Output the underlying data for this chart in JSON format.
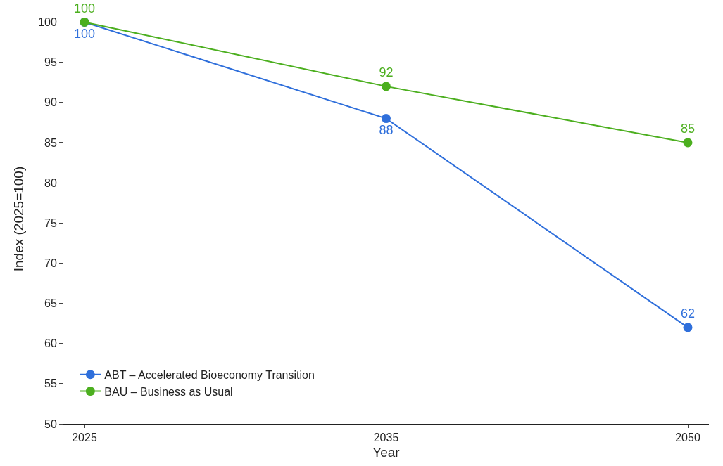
{
  "chart_data": {
    "type": "line",
    "xlabel": "Year",
    "ylabel": "Index (2025=100)",
    "categories": [
      "2025",
      "2035",
      "2050"
    ],
    "series": [
      {
        "name": "ABT – Accelerated Bioeconomy Transition",
        "color": "#2f6fdb",
        "values": [
          100,
          88,
          62
        ]
      },
      {
        "name": "BAU – Business as Usual",
        "color": "#4caf1f",
        "values": [
          100,
          92,
          85
        ]
      }
    ],
    "ylim": [
      50,
      101
    ],
    "yticks": [
      50,
      55,
      60,
      65,
      70,
      75,
      80,
      85,
      90,
      95,
      100
    ],
    "legend": "bottom left",
    "marker": "circle",
    "line_style": "solid",
    "data_labels": true
  }
}
